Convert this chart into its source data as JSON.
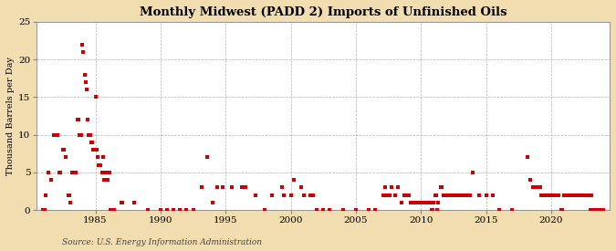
{
  "title": "Monthly Midwest (PADD 2) Imports of Unfinished Oils",
  "ylabel": "Thousand Barrels per Day",
  "source": "Source: U.S. Energy Information Administration",
  "background_color": "#f2ddb0",
  "plot_bg_color": "#ffffff",
  "marker_color": "#cc0000",
  "marker_size": 5,
  "ylim": [
    0,
    25
  ],
  "yticks": [
    0,
    5,
    10,
    15,
    20,
    25
  ],
  "xlim": [
    1980.5,
    2024.5
  ],
  "xticks": [
    1985,
    1990,
    1995,
    2000,
    2005,
    2010,
    2015,
    2020
  ],
  "data_points": [
    [
      1981.0,
      0
    ],
    [
      1981.1,
      0
    ],
    [
      1981.2,
      2
    ],
    [
      1981.4,
      5
    ],
    [
      1981.6,
      4
    ],
    [
      1981.8,
      10
    ],
    [
      1982.0,
      10
    ],
    [
      1982.1,
      10
    ],
    [
      1982.2,
      5
    ],
    [
      1982.3,
      5
    ],
    [
      1982.5,
      8
    ],
    [
      1982.6,
      8
    ],
    [
      1982.7,
      7
    ],
    [
      1982.9,
      2
    ],
    [
      1983.0,
      2
    ],
    [
      1983.1,
      1
    ],
    [
      1983.2,
      5
    ],
    [
      1983.3,
      5
    ],
    [
      1983.4,
      5
    ],
    [
      1983.5,
      5
    ],
    [
      1983.6,
      12
    ],
    [
      1983.7,
      12
    ],
    [
      1983.8,
      10
    ],
    [
      1983.9,
      10
    ],
    [
      1984.0,
      22
    ],
    [
      1984.08,
      21
    ],
    [
      1984.17,
      18
    ],
    [
      1984.25,
      17
    ],
    [
      1984.33,
      16
    ],
    [
      1984.42,
      12
    ],
    [
      1984.5,
      10
    ],
    [
      1984.58,
      10
    ],
    [
      1984.67,
      9
    ],
    [
      1984.75,
      9
    ],
    [
      1984.83,
      8
    ],
    [
      1984.92,
      8
    ],
    [
      1985.0,
      15
    ],
    [
      1985.08,
      8
    ],
    [
      1985.17,
      7
    ],
    [
      1985.25,
      6
    ],
    [
      1985.33,
      6
    ],
    [
      1985.42,
      6
    ],
    [
      1985.5,
      5
    ],
    [
      1985.58,
      7
    ],
    [
      1985.67,
      4
    ],
    [
      1985.75,
      5
    ],
    [
      1985.83,
      5
    ],
    [
      1985.92,
      4
    ],
    [
      1986.0,
      5
    ],
    [
      1986.08,
      5
    ],
    [
      1986.17,
      0
    ],
    [
      1986.25,
      0
    ],
    [
      1986.33,
      0
    ],
    [
      1986.42,
      0
    ],
    [
      1987.0,
      1
    ],
    [
      1987.08,
      1
    ],
    [
      1988.0,
      1
    ],
    [
      1989.0,
      0
    ],
    [
      1990.0,
      0
    ],
    [
      1990.5,
      0
    ],
    [
      1991.0,
      0
    ],
    [
      1991.5,
      0
    ],
    [
      1992.0,
      0
    ],
    [
      1992.5,
      0
    ],
    [
      1993.17,
      3
    ],
    [
      1993.58,
      7
    ],
    [
      1994.0,
      1
    ],
    [
      1994.33,
      3
    ],
    [
      1994.75,
      3
    ],
    [
      1995.5,
      3
    ],
    [
      1996.25,
      3
    ],
    [
      1996.5,
      3
    ],
    [
      1997.33,
      2
    ],
    [
      1998.0,
      0
    ],
    [
      1998.58,
      2
    ],
    [
      1999.33,
      3
    ],
    [
      1999.5,
      2
    ],
    [
      2000.0,
      2
    ],
    [
      2000.25,
      4
    ],
    [
      2000.83,
      3
    ],
    [
      2001.0,
      2
    ],
    [
      2001.5,
      2
    ],
    [
      2001.75,
      2
    ],
    [
      2002.0,
      0
    ],
    [
      2002.5,
      0
    ],
    [
      2003.0,
      0
    ],
    [
      2004.0,
      0
    ],
    [
      2005.0,
      0
    ],
    [
      2006.0,
      0
    ],
    [
      2006.5,
      0
    ],
    [
      2007.08,
      2
    ],
    [
      2007.25,
      3
    ],
    [
      2007.42,
      2
    ],
    [
      2007.58,
      2
    ],
    [
      2007.75,
      3
    ],
    [
      2008.0,
      2
    ],
    [
      2008.25,
      3
    ],
    [
      2008.5,
      1
    ],
    [
      2008.75,
      2
    ],
    [
      2008.92,
      2
    ],
    [
      2009.08,
      2
    ],
    [
      2009.25,
      1
    ],
    [
      2009.42,
      1
    ],
    [
      2009.58,
      1
    ],
    [
      2009.75,
      1
    ],
    [
      2010.0,
      1
    ],
    [
      2010.08,
      1
    ],
    [
      2010.17,
      1
    ],
    [
      2010.25,
      1
    ],
    [
      2010.33,
      1
    ],
    [
      2010.42,
      1
    ],
    [
      2010.5,
      1
    ],
    [
      2010.58,
      1
    ],
    [
      2010.67,
      1
    ],
    [
      2010.75,
      1
    ],
    [
      2010.83,
      0
    ],
    [
      2010.92,
      0
    ],
    [
      2011.0,
      1
    ],
    [
      2011.08,
      2
    ],
    [
      2011.17,
      2
    ],
    [
      2011.25,
      0
    ],
    [
      2011.33,
      1
    ],
    [
      2011.5,
      3
    ],
    [
      2011.58,
      3
    ],
    [
      2011.75,
      2
    ],
    [
      2011.83,
      2
    ],
    [
      2012.0,
      2
    ],
    [
      2012.25,
      2
    ],
    [
      2012.5,
      2
    ],
    [
      2012.75,
      2
    ],
    [
      2013.0,
      2
    ],
    [
      2013.25,
      2
    ],
    [
      2013.5,
      2
    ],
    [
      2013.75,
      2
    ],
    [
      2014.0,
      5
    ],
    [
      2014.5,
      2
    ],
    [
      2015.0,
      2
    ],
    [
      2015.5,
      2
    ],
    [
      2016.0,
      0
    ],
    [
      2017.0,
      0
    ],
    [
      2018.17,
      7
    ],
    [
      2018.42,
      4
    ],
    [
      2018.58,
      3
    ],
    [
      2018.75,
      3
    ],
    [
      2018.92,
      3
    ],
    [
      2019.0,
      3
    ],
    [
      2019.08,
      3
    ],
    [
      2019.17,
      3
    ],
    [
      2019.25,
      2
    ],
    [
      2019.33,
      2
    ],
    [
      2019.42,
      2
    ],
    [
      2019.5,
      2
    ],
    [
      2019.58,
      2
    ],
    [
      2019.67,
      2
    ],
    [
      2019.75,
      2
    ],
    [
      2019.83,
      2
    ],
    [
      2019.92,
      2
    ],
    [
      2020.0,
      2
    ],
    [
      2020.08,
      2
    ],
    [
      2020.17,
      2
    ],
    [
      2020.25,
      2
    ],
    [
      2020.33,
      2
    ],
    [
      2020.42,
      2
    ],
    [
      2020.5,
      2
    ],
    [
      2020.58,
      2
    ],
    [
      2020.75,
      0
    ],
    [
      2020.83,
      0
    ],
    [
      2021.0,
      2
    ],
    [
      2021.08,
      2
    ],
    [
      2021.33,
      2
    ],
    [
      2021.5,
      2
    ],
    [
      2021.75,
      2
    ],
    [
      2021.83,
      2
    ],
    [
      2022.0,
      2
    ],
    [
      2022.25,
      2
    ],
    [
      2022.42,
      2
    ],
    [
      2022.5,
      2
    ],
    [
      2022.67,
      2
    ],
    [
      2022.83,
      2
    ],
    [
      2023.0,
      0
    ],
    [
      2023.08,
      2
    ],
    [
      2023.33,
      0
    ],
    [
      2023.5,
      0
    ],
    [
      2023.75,
      0
    ],
    [
      2023.83,
      0
    ],
    [
      2024.0,
      0
    ]
  ]
}
